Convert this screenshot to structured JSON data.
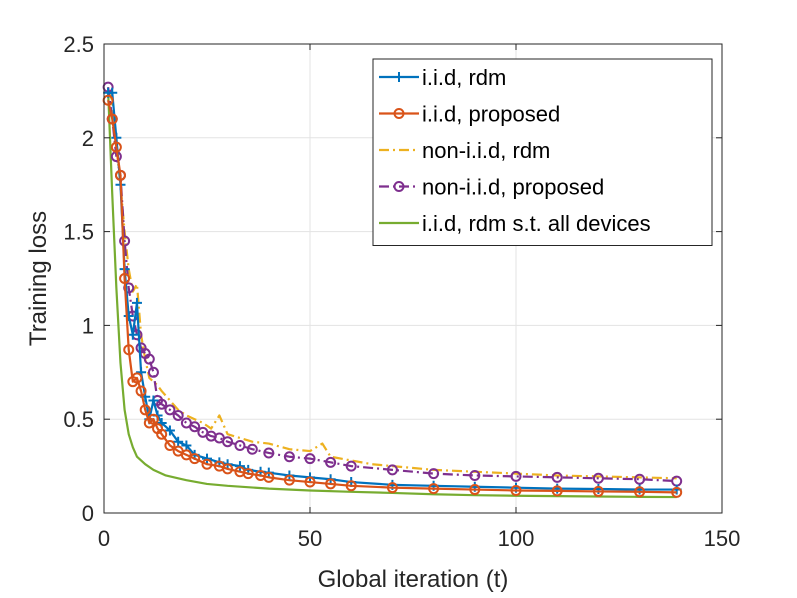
{
  "chart_data": {
    "type": "line",
    "title": "",
    "xlabel": "Global iteration (t)",
    "ylabel": "Training loss",
    "xlim": [
      0,
      150
    ],
    "ylim": [
      0,
      2.5
    ],
    "xticks": [
      0,
      50,
      100,
      150
    ],
    "xtick_labels": [
      "0",
      "50",
      "100",
      "150"
    ],
    "yticks": [
      0,
      0.5,
      1,
      1.5,
      2,
      2.5
    ],
    "ytick_labels": [
      "0",
      "0.5",
      "1",
      "1.5",
      "2",
      "2.5"
    ],
    "grid": true,
    "legend_position": "top-right",
    "series": [
      {
        "name": "i.i.d, rdm",
        "color": "#0072BD",
        "dash": "solid",
        "marker": "plus",
        "x": [
          1,
          2,
          3,
          4,
          5,
          6,
          7,
          8,
          9,
          10,
          11,
          12,
          13,
          14,
          16,
          18,
          20,
          22,
          25,
          28,
          30,
          33,
          35,
          38,
          40,
          45,
          50,
          55,
          60,
          70,
          80,
          90,
          100,
          110,
          120,
          130,
          139
        ],
        "y": [
          2.24,
          2.24,
          2.0,
          1.75,
          1.3,
          1.05,
          0.95,
          1.12,
          0.75,
          0.62,
          0.5,
          0.6,
          0.52,
          0.48,
          0.44,
          0.38,
          0.36,
          0.31,
          0.29,
          0.27,
          0.26,
          0.25,
          0.23,
          0.22,
          0.215,
          0.2,
          0.19,
          0.18,
          0.165,
          0.15,
          0.145,
          0.14,
          0.135,
          0.13,
          0.128,
          0.125,
          0.125
        ]
      },
      {
        "name": "i.i.d, proposed",
        "color": "#D95319",
        "dash": "solid",
        "marker": "circle",
        "x": [
          1,
          2,
          3,
          4,
          5,
          6,
          7,
          8,
          9,
          10,
          11,
          12,
          13,
          14,
          16,
          18,
          20,
          22,
          25,
          28,
          30,
          33,
          35,
          38,
          40,
          45,
          50,
          55,
          60,
          70,
          80,
          90,
          100,
          110,
          120,
          130,
          139
        ],
        "y": [
          2.2,
          2.1,
          1.95,
          1.8,
          1.25,
          0.87,
          0.7,
          0.72,
          0.65,
          0.55,
          0.48,
          0.5,
          0.45,
          0.42,
          0.36,
          0.33,
          0.31,
          0.29,
          0.26,
          0.25,
          0.235,
          0.22,
          0.21,
          0.2,
          0.19,
          0.175,
          0.165,
          0.155,
          0.145,
          0.135,
          0.13,
          0.125,
          0.12,
          0.118,
          0.115,
          0.113,
          0.11
        ]
      },
      {
        "name": "non-i.i.d, rdm",
        "color": "#EDB120",
        "dash": "dashdot",
        "marker": "none",
        "x": [
          1,
          2,
          3,
          4,
          5,
          6,
          7,
          8,
          9,
          10,
          11,
          12,
          13,
          14,
          16,
          18,
          20,
          22,
          24,
          26,
          28,
          30,
          33,
          36,
          40,
          45,
          50,
          53,
          55,
          60,
          65,
          70,
          80,
          90,
          100,
          110,
          120,
          130,
          139
        ],
        "y": [
          2.25,
          2.2,
          1.95,
          1.75,
          1.5,
          1.3,
          1.18,
          1.22,
          0.95,
          0.82,
          0.72,
          0.7,
          0.68,
          0.65,
          0.6,
          0.55,
          0.52,
          0.5,
          0.48,
          0.45,
          0.52,
          0.42,
          0.4,
          0.38,
          0.37,
          0.34,
          0.33,
          0.37,
          0.3,
          0.28,
          0.26,
          0.25,
          0.23,
          0.22,
          0.21,
          0.2,
          0.195,
          0.19,
          0.185
        ]
      },
      {
        "name": "non-i.i.d, proposed",
        "color": "#7E2F8E",
        "dash": "dashdot",
        "marker": "circle",
        "x": [
          1,
          2,
          3,
          4,
          5,
          6,
          7,
          8,
          9,
          10,
          11,
          12,
          13,
          14,
          16,
          18,
          20,
          22,
          24,
          26,
          28,
          30,
          33,
          36,
          40,
          45,
          50,
          55,
          60,
          70,
          80,
          90,
          100,
          110,
          120,
          130,
          139
        ],
        "y": [
          2.27,
          2.1,
          1.9,
          1.8,
          1.45,
          1.2,
          1.05,
          0.95,
          0.88,
          0.85,
          0.82,
          0.75,
          0.6,
          0.58,
          0.55,
          0.52,
          0.48,
          0.46,
          0.43,
          0.41,
          0.4,
          0.38,
          0.36,
          0.34,
          0.32,
          0.3,
          0.29,
          0.27,
          0.25,
          0.23,
          0.21,
          0.2,
          0.195,
          0.19,
          0.185,
          0.18,
          0.17
        ]
      },
      {
        "name": "i.i.d, rdm s.t. all devices",
        "color": "#77AC30",
        "dash": "solid",
        "marker": "none",
        "x": [
          1,
          2,
          3,
          4,
          5,
          6,
          7,
          8,
          10,
          12,
          15,
          18,
          20,
          25,
          30,
          40,
          50,
          60,
          70,
          80,
          90,
          100,
          110,
          120,
          130,
          139
        ],
        "y": [
          2.25,
          1.7,
          1.2,
          0.8,
          0.55,
          0.42,
          0.35,
          0.3,
          0.26,
          0.23,
          0.2,
          0.185,
          0.175,
          0.155,
          0.145,
          0.13,
          0.12,
          0.113,
          0.107,
          0.1,
          0.095,
          0.092,
          0.09,
          0.088,
          0.086,
          0.085
        ]
      }
    ]
  }
}
